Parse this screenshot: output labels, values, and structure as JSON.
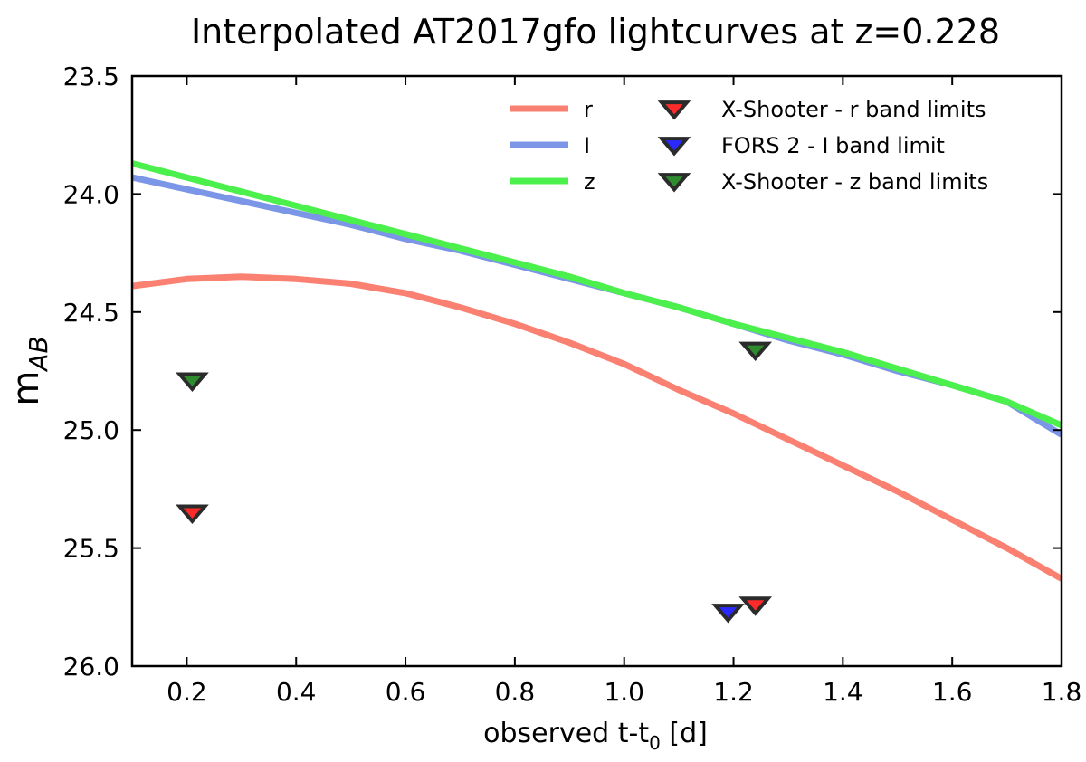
{
  "chart_data": {
    "type": "line",
    "title": "Interpolated AT2017gfo lightcurves at z=0.228",
    "xlabel": "observed t-t",
    "xlabel_sub": "0",
    "xlabel_suffix": " [d]",
    "ylabel": "m",
    "ylabel_sub": "AB",
    "xlim": [
      0.1,
      1.8
    ],
    "ylim": [
      26.0,
      23.5
    ],
    "y_inverted": true,
    "grid": false,
    "legend_position": "top-right",
    "x_ticks": [
      {
        "value": 0.2,
        "label": "0.2"
      },
      {
        "value": 0.4,
        "label": "0.4"
      },
      {
        "value": 0.6,
        "label": "0.6"
      },
      {
        "value": 0.8,
        "label": "0.8"
      },
      {
        "value": 1.0,
        "label": "1.0"
      },
      {
        "value": 1.2,
        "label": "1.2"
      },
      {
        "value": 1.4,
        "label": "1.4"
      },
      {
        "value": 1.6,
        "label": "1.6"
      },
      {
        "value": 1.8,
        "label": "1.8"
      }
    ],
    "y_ticks": [
      {
        "value": 23.5,
        "label": "23.5"
      },
      {
        "value": 24.0,
        "label": "24.0"
      },
      {
        "value": 24.5,
        "label": "24.5"
      },
      {
        "value": 25.0,
        "label": "25.0"
      },
      {
        "value": 25.5,
        "label": "25.5"
      },
      {
        "value": 26.0,
        "label": "26.0"
      }
    ],
    "series": [
      {
        "name": "r",
        "color": "#fa8072",
        "x": [
          0.1,
          0.2,
          0.3,
          0.4,
          0.5,
          0.6,
          0.7,
          0.8,
          0.9,
          1.0,
          1.1,
          1.2,
          1.3,
          1.4,
          1.5,
          1.6,
          1.7,
          1.8
        ],
        "y": [
          24.39,
          24.36,
          24.35,
          24.36,
          24.38,
          24.42,
          24.48,
          24.55,
          24.63,
          24.72,
          24.83,
          24.93,
          25.04,
          25.15,
          25.26,
          25.38,
          25.5,
          25.63
        ]
      },
      {
        "name": "I",
        "color": "#7b96e6",
        "x": [
          0.1,
          0.2,
          0.3,
          0.4,
          0.5,
          0.6,
          0.7,
          0.8,
          0.9,
          1.0,
          1.1,
          1.2,
          1.3,
          1.4,
          1.5,
          1.6,
          1.7,
          1.8
        ],
        "y": [
          23.93,
          23.98,
          24.03,
          24.08,
          24.13,
          24.19,
          24.24,
          24.3,
          24.36,
          24.42,
          24.48,
          24.55,
          24.62,
          24.68,
          24.75,
          24.81,
          24.88,
          25.02
        ]
      },
      {
        "name": "z",
        "color": "#4cf04c",
        "x": [
          0.1,
          0.2,
          0.3,
          0.4,
          0.5,
          0.6,
          0.7,
          0.8,
          0.9,
          1.0,
          1.1,
          1.2,
          1.3,
          1.4,
          1.5,
          1.6,
          1.7,
          1.8
        ],
        "y": [
          23.87,
          23.93,
          23.99,
          24.05,
          24.11,
          24.17,
          24.23,
          24.29,
          24.35,
          24.42,
          24.48,
          24.55,
          24.61,
          24.67,
          24.74,
          24.81,
          24.88,
          24.98
        ]
      }
    ],
    "markers": [
      {
        "name": "X-Shooter - r band limits",
        "color": "#ff2a2a",
        "points": [
          {
            "x": 0.21,
            "y": 25.35
          },
          {
            "x": 1.24,
            "y": 25.74
          }
        ]
      },
      {
        "name": "FORS 2 - I band limit",
        "color": "#2a2aff",
        "points": [
          {
            "x": 1.19,
            "y": 25.77
          }
        ]
      },
      {
        "name": "X-Shooter - z band limits",
        "color": "#2e8b2e",
        "points": [
          {
            "x": 0.21,
            "y": 24.79
          },
          {
            "x": 1.24,
            "y": 24.66
          }
        ]
      }
    ]
  }
}
